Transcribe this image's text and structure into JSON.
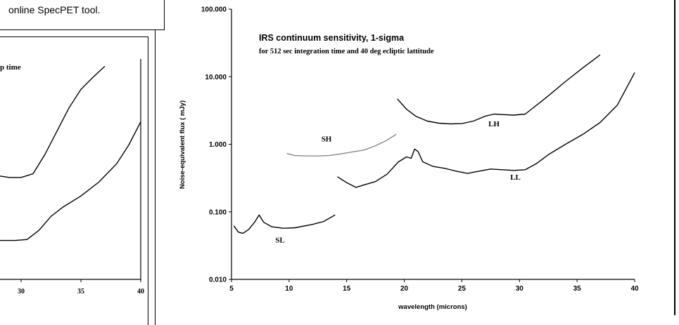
{
  "caption": "online SpecPET tool.",
  "left_panel": {
    "label_fragment": "p time",
    "xticks": [
      {
        "label": "30",
        "x": 30
      },
      {
        "label": "35",
        "x": 35
      },
      {
        "label": "40",
        "x": 40
      }
    ],
    "curves": [
      {
        "name": "",
        "points": [
          [
            26,
            11.5
          ],
          [
            28,
            11.2
          ],
          [
            29,
            11.0
          ],
          [
            30,
            11.0
          ],
          [
            31,
            11.4
          ],
          [
            32,
            13.5
          ],
          [
            33,
            16
          ],
          [
            34,
            18.5
          ],
          [
            35,
            20.5
          ],
          [
            36,
            21.8
          ],
          [
            37,
            23.0
          ]
        ]
      },
      {
        "name": "",
        "points": [
          [
            26,
            4.2
          ],
          [
            28,
            4.2
          ],
          [
            29.5,
            4.2
          ],
          [
            30.5,
            4.3
          ],
          [
            31.5,
            5.3
          ],
          [
            32.5,
            6.8
          ],
          [
            33.5,
            7.8
          ],
          [
            35,
            9.0
          ],
          [
            36.5,
            10.5
          ],
          [
            38,
            12.5
          ],
          [
            39,
            14.5
          ],
          [
            40,
            17.0
          ]
        ]
      }
    ]
  },
  "chart_data": {
    "type": "line",
    "title": "IRS continuum sensitivity,  1-sigma",
    "subtitle": "for 512 sec integration time and 40 deg ecliptic lattitude",
    "xlabel": "wavelength (microns)",
    "ylabel": "Noise-equivalent flux ( mJy)",
    "xlim": [
      5,
      40
    ],
    "ylim": [
      0.01,
      100
    ],
    "yscale": "log",
    "xticks": [
      5,
      10,
      15,
      20,
      25,
      30,
      35,
      40
    ],
    "yticks": [
      {
        "value": 0.01,
        "label": "0.010"
      },
      {
        "value": 0.1,
        "label": "0.100"
      },
      {
        "value": 1,
        "label": "1.000"
      },
      {
        "value": 10,
        "label": "10.000"
      },
      {
        "value": 100,
        "label": "100.000"
      }
    ],
    "series": [
      {
        "name": "SL",
        "label_at": [
          8.8,
          0.035
        ],
        "color": "#000000",
        "points": [
          [
            5.2,
            0.062
          ],
          [
            5.6,
            0.05
          ],
          [
            6.0,
            0.048
          ],
          [
            6.5,
            0.055
          ],
          [
            7.0,
            0.07
          ],
          [
            7.4,
            0.09
          ],
          [
            7.8,
            0.07
          ],
          [
            8.5,
            0.06
          ],
          [
            9.5,
            0.057
          ],
          [
            10.5,
            0.058
          ],
          [
            12.0,
            0.065
          ],
          [
            13.0,
            0.072
          ],
          [
            14.0,
            0.09
          ]
        ]
      },
      {
        "name": "SH",
        "label_at": [
          12.8,
          1.1
        ],
        "color": "#888888",
        "points": [
          [
            9.8,
            0.73
          ],
          [
            10.5,
            0.68
          ],
          [
            11.5,
            0.67
          ],
          [
            12.5,
            0.67
          ],
          [
            13.5,
            0.68
          ],
          [
            14.5,
            0.72
          ],
          [
            15.5,
            0.77
          ],
          [
            16.5,
            0.82
          ],
          [
            17.5,
            0.95
          ],
          [
            18.5,
            1.15
          ],
          [
            19.3,
            1.4
          ]
        ]
      },
      {
        "name": "LL",
        "label_at": [
          29.2,
          0.3
        ],
        "color": "#000000",
        "points": [
          [
            14.2,
            0.33
          ],
          [
            15.0,
            0.27
          ],
          [
            15.8,
            0.23
          ],
          [
            16.5,
            0.25
          ],
          [
            17.5,
            0.28
          ],
          [
            18.5,
            0.36
          ],
          [
            19.5,
            0.55
          ],
          [
            20.2,
            0.65
          ],
          [
            20.6,
            0.62
          ],
          [
            20.9,
            0.85
          ],
          [
            21.2,
            0.78
          ],
          [
            21.6,
            0.55
          ],
          [
            22.5,
            0.47
          ],
          [
            23.5,
            0.44
          ],
          [
            24.5,
            0.4
          ],
          [
            25.5,
            0.37
          ],
          [
            26.5,
            0.4
          ],
          [
            27.5,
            0.43
          ],
          [
            28.5,
            0.42
          ],
          [
            29.5,
            0.41
          ],
          [
            30.5,
            0.42
          ],
          [
            31.5,
            0.52
          ],
          [
            32.5,
            0.7
          ],
          [
            34.0,
            1.0
          ],
          [
            35.5,
            1.4
          ],
          [
            37.0,
            2.1
          ],
          [
            38.5,
            3.8
          ],
          [
            40.0,
            11.5
          ]
        ]
      },
      {
        "name": "LH",
        "label_at": [
          27.3,
          1.85
        ],
        "color": "#000000",
        "points": [
          [
            19.4,
            4.7
          ],
          [
            20.2,
            3.3
          ],
          [
            21.0,
            2.6
          ],
          [
            22.0,
            2.2
          ],
          [
            23.0,
            2.05
          ],
          [
            24.0,
            2.0
          ],
          [
            25.0,
            2.02
          ],
          [
            26.0,
            2.2
          ],
          [
            27.0,
            2.6
          ],
          [
            27.8,
            2.8
          ],
          [
            28.5,
            2.75
          ],
          [
            29.5,
            2.7
          ],
          [
            30.5,
            2.8
          ],
          [
            31.5,
            3.8
          ],
          [
            32.5,
            5.2
          ],
          [
            34.0,
            8.5
          ],
          [
            35.5,
            13.5
          ],
          [
            37.0,
            21.0
          ]
        ]
      }
    ]
  }
}
